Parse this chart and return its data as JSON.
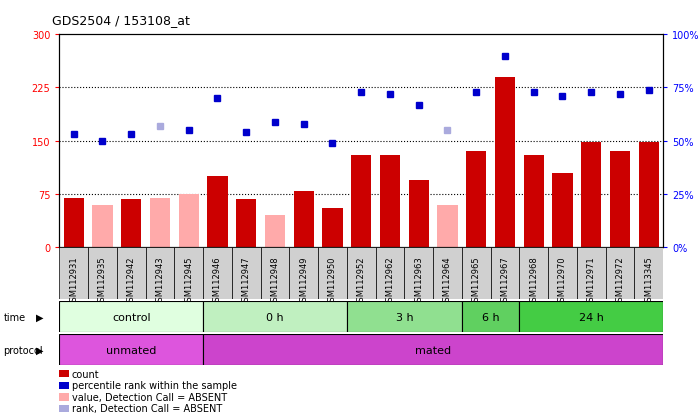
{
  "title": "GDS2504 / 153108_at",
  "samples": [
    "GSM112931",
    "GSM112935",
    "GSM112942",
    "GSM112943",
    "GSM112945",
    "GSM112946",
    "GSM112947",
    "GSM112948",
    "GSM112949",
    "GSM112950",
    "GSM112952",
    "GSM112962",
    "GSM112963",
    "GSM112964",
    "GSM112965",
    "GSM112967",
    "GSM112968",
    "GSM112970",
    "GSM112971",
    "GSM112972",
    "GSM113345"
  ],
  "count_values": [
    70,
    60,
    68,
    70,
    75,
    100,
    68,
    45,
    80,
    55,
    130,
    130,
    95,
    60,
    135,
    240,
    130,
    105,
    148,
    135,
    148
  ],
  "count_absent": [
    false,
    true,
    false,
    true,
    true,
    false,
    false,
    true,
    false,
    false,
    false,
    false,
    false,
    true,
    false,
    false,
    false,
    false,
    false,
    false,
    false
  ],
  "percentile_values": [
    53,
    50,
    53,
    57,
    55,
    70,
    54,
    59,
    58,
    49,
    73,
    72,
    67,
    55,
    73,
    90,
    73,
    71,
    73,
    72,
    74
  ],
  "percentile_absent": [
    false,
    false,
    false,
    true,
    false,
    false,
    false,
    false,
    false,
    false,
    false,
    false,
    false,
    true,
    false,
    false,
    false,
    false,
    false,
    false,
    false
  ],
  "time_groups": [
    {
      "label": "control",
      "start": 0,
      "end": 5,
      "color": "#e0ffe0"
    },
    {
      "label": "0 h",
      "start": 5,
      "end": 10,
      "color": "#c0f0c0"
    },
    {
      "label": "3 h",
      "start": 10,
      "end": 14,
      "color": "#90e090"
    },
    {
      "label": "6 h",
      "start": 14,
      "end": 16,
      "color": "#60d060"
    },
    {
      "label": "24 h",
      "start": 16,
      "end": 21,
      "color": "#44cc44"
    }
  ],
  "protocol_groups": [
    {
      "label": "unmated",
      "start": 0,
      "end": 5,
      "color": "#dd55dd"
    },
    {
      "label": "mated",
      "start": 5,
      "end": 21,
      "color": "#cc44cc"
    }
  ],
  "ylim_left": [
    0,
    300
  ],
  "ylim_right": [
    0,
    100
  ],
  "yticks_left": [
    0,
    75,
    150,
    225,
    300
  ],
  "yticks_right": [
    0,
    25,
    50,
    75,
    100
  ],
  "hlines": [
    75,
    150,
    225
  ],
  "bar_color": "#cc0000",
  "bar_absent_color": "#ffaaaa",
  "dot_color": "#0000cc",
  "dot_absent_color": "#aaaadd",
  "legend_items": [
    {
      "label": "count",
      "color": "#cc0000"
    },
    {
      "label": "percentile rank within the sample",
      "color": "#0000cc"
    },
    {
      "label": "value, Detection Call = ABSENT",
      "color": "#ffaaaa"
    },
    {
      "label": "rank, Detection Call = ABSENT",
      "color": "#aaaadd"
    }
  ],
  "background_color": "#ffffff",
  "plot_bg_color": "#ffffff",
  "xtick_bg_color": "#d0d0d0"
}
